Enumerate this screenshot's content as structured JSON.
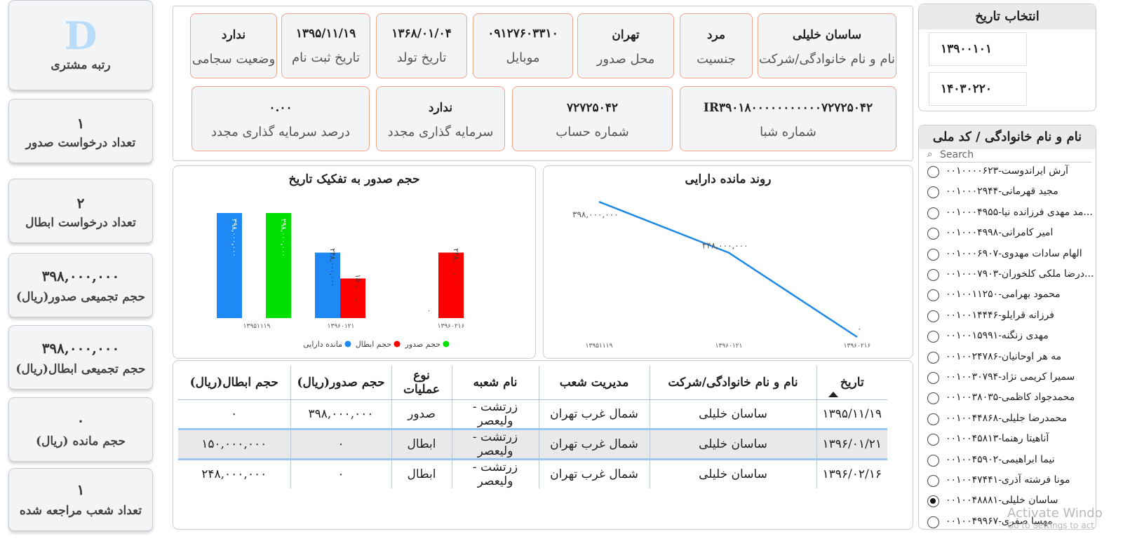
{
  "kpis": {
    "rank": {
      "value": "D",
      "label": "رتبه مشتری"
    },
    "issue_requests": {
      "value": "۱",
      "label": "تعداد درخواست صدور"
    },
    "cancel_requests": {
      "value": "۲",
      "label": "تعداد درخواست ابطال"
    },
    "total_issue": {
      "value": "۳۹۸,۰۰۰,۰۰۰",
      "label": "حجم تجمیعی صدور(ریال)"
    },
    "total_cancel": {
      "value": "۳۹۸,۰۰۰,۰۰۰",
      "label": "حجم تجمیعی ابطال(ریال)"
    },
    "balance": {
      "value": "۰",
      "label": "حجم مانده (ریال)"
    },
    "branches": {
      "value": "۱",
      "label": "تعداد شعب مراجعه شده"
    }
  },
  "info": {
    "name": {
      "value": "ساسان خلیلی",
      "label": "نام و نام خانوادگی/شرکت"
    },
    "gender": {
      "value": "مرد",
      "label": "جنسیت"
    },
    "issue_place": {
      "value": "تهران",
      "label": "محل صدور"
    },
    "mobile": {
      "value": "۰۹۱۲۷۶۰۳۳۱۰",
      "label": "موبایل"
    },
    "birth_date": {
      "value": "۱۳۶۸/۰۱/۰۴",
      "label": "تاریخ تولد"
    },
    "register_date": {
      "value": "۱۳۹۵/۱۱/۱۹",
      "label": "تاریخ ثبت نام"
    },
    "sejam": {
      "value": "ندارد",
      "label": "وضعیت سجامی"
    },
    "sheba": {
      "value": "IR۳۹۰۱۸۰۰۰۰۰۰۰۰۰۰۰۷۲۷۲۵۰۴۲",
      "label": "شماره شبا"
    },
    "account": {
      "value": "۷۲۷۲۵۰۴۲",
      "label": "شماره حساب"
    },
    "reinvest": {
      "value": "ندارد",
      "label": "سرمایه گذاری مجدد"
    },
    "reinvest_pct": {
      "value": "۰.۰۰",
      "label": "درصد سرمایه گذاری مجدد"
    }
  },
  "date_filter": {
    "title": "انتخاب تاریخ",
    "from": "۱۳۹۰۰۱۰۱",
    "to": "۱۴۰۳۰۲۲۰"
  },
  "customer_list": {
    "title": "نام و نام خانوادگی / کد ملی",
    "search_placeholder": "Search",
    "items": [
      {
        "text": "آرش ایراندوست-۰۰۱۰۰۰۰۶۲۳",
        "selected": false
      },
      {
        "text": "مجید قهرمانی-۰۰۱۰۰۰۲۹۴۴",
        "selected": false
      },
      {
        "text": "...مد مهدی فرزانده نیا-۰۰۱۰۰۰۴۹۵۵",
        "selected": false
      },
      {
        "text": "امیر کامرانی-۰۰۱۰۰۰۴۹۹۸",
        "selected": false
      },
      {
        "text": "الهام سادات مهدوی-۰۰۱۰۰۰۶۹۰۷",
        "selected": false
      },
      {
        "text": "...درضا ملکی کلخوران-۰۰۱۰۰۰۷۹۰۳",
        "selected": false
      },
      {
        "text": "محمود بهرامی-۰۰۱۰۰۱۱۲۵۰",
        "selected": false
      },
      {
        "text": "فرزانه قرایلو-۰۰۱۰۰۱۴۴۴۶",
        "selected": false
      },
      {
        "text": "مهدی زنگنه-۰۰۱۰۰۱۵۹۹۱",
        "selected": false
      },
      {
        "text": "مه هر اوحانیان-۰۰۱۰۰۲۴۷۸۶",
        "selected": false
      },
      {
        "text": "سمیرا کریمی نژاد-۰۰۱۰۰۳۰۷۹۴",
        "selected": false
      },
      {
        "text": "محمدجواد کاظمی-۰۰۱۰۰۳۸۰۳۵",
        "selected": false
      },
      {
        "text": "محمدرضا جلیلی-۰۰۱۰۰۴۴۸۶۸",
        "selected": false
      },
      {
        "text": "آناهیتا رهنما-۰۰۱۰۰۴۵۸۱۳",
        "selected": false
      },
      {
        "text": "نیما ابراهیمی-۰۰۱۰۰۴۵۹۰۲",
        "selected": false
      },
      {
        "text": "مونا فرشته آذری-۰۰۱۰۰۴۷۴۴۱",
        "selected": false
      },
      {
        "text": "ساسان خلیلی-۰۰۱۰۰۴۸۸۸۱",
        "selected": true
      },
      {
        "text": "مهسا صفری-۰۰۱۰۰۴۹۹۶۷",
        "selected": false
      }
    ]
  },
  "watermark": {
    "line1": "Activate Windo",
    "line2": "Go to Settings to act"
  },
  "table": {
    "headers": [
      "تاریخ",
      "نام و نام خانوادگی/شرکت",
      "مدیریت شعب",
      "نام شعبه",
      "نوع عملیات",
      "حجم صدور(ریال)",
      "حجم ابطال(ریال)"
    ],
    "rows": [
      [
        "۱۳۹۵/۱۱/۱۹",
        "ساسان خلیلی",
        "شمال غرب تهران",
        "زرتشت - ولیعصر",
        "صدور",
        "۳۹۸,۰۰۰,۰۰۰",
        "۰"
      ],
      [
        "۱۳۹۶/۰۱/۲۱",
        "ساسان خلیلی",
        "شمال غرب تهران",
        "زرتشت - ولیعصر",
        "ابطال",
        "۰",
        "۱۵۰,۰۰۰,۰۰۰"
      ],
      [
        "۱۳۹۶/۰۲/۱۶",
        "ساسان خلیلی",
        "شمال غرب تهران",
        "زرتشت - ولیعصر",
        "ابطال",
        "۰",
        "۲۴۸,۰۰۰,۰۰۰"
      ]
    ],
    "highlight_row": 1
  },
  "chart_data": [
    {
      "type": "line",
      "title": "روند مانده دارایی",
      "x": [
        "۱۳۹۵۱۱۱۹",
        "۱۳۹۶۰۱۲۱",
        "۱۳۹۶۰۲۱۶"
      ],
      "y": [
        398000000,
        248000000,
        0
      ],
      "data_labels": [
        "۳۹۸,۰۰۰,۰۰۰",
        "۲۴۸,۰۰۰,۰۰۰",
        "۰"
      ],
      "color": "#1e88e5"
    },
    {
      "type": "bar",
      "title": "حجم صدور به تفکیک تاریخ",
      "categories": [
        "۱۳۹۵۱۱۱۹",
        "۱۳۹۶۰۱۲۱",
        "۱۳۹۶۰۲۱۶"
      ],
      "series": [
        {
          "name": "حجم صدور",
          "color": "#00e000",
          "values": [
            398000000,
            0,
            0
          ],
          "labels": [
            "۳۹۸,۰۰۰,۰۰۰",
            "",
            ""
          ]
        },
        {
          "name": "حجم ابطال",
          "color": "#ff0000",
          "values": [
            0,
            150000000,
            248000000
          ],
          "labels": [
            "",
            "۱۵۰,۰۰۰,۰۰۰",
            "۲۴۸,۰۰۰,۰۰۰"
          ]
        },
        {
          "name": "مانده دارایی",
          "color": "#1e88f5",
          "values": [
            398000000,
            248000000,
            0
          ],
          "labels": [
            "۳۹۸,۰۰۰,۰۰۰",
            "۲۴۸,۰۰۰,۰۰۰",
            "۰"
          ]
        }
      ],
      "legend": "bottom"
    }
  ]
}
